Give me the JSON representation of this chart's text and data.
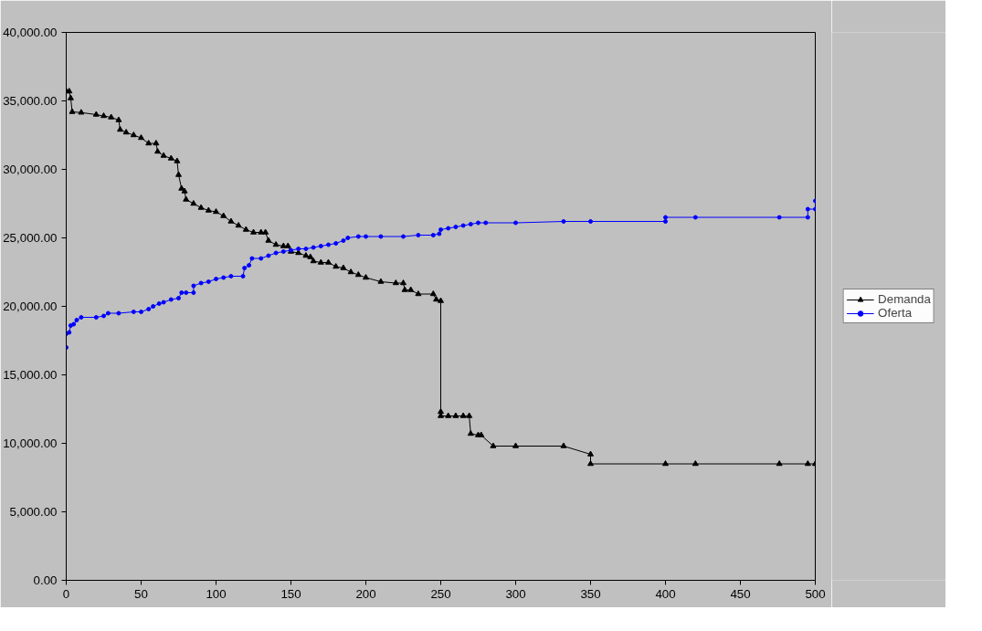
{
  "chart_data": {
    "type": "line",
    "xlim": [
      0,
      500
    ],
    "ylim": [
      0,
      40000
    ],
    "xticks": [
      0,
      50,
      100,
      150,
      200,
      250,
      300,
      350,
      400,
      450,
      500
    ],
    "yticks": [
      {
        "value": 0,
        "label": "0.00"
      },
      {
        "value": 5000,
        "label": "5,000.00"
      },
      {
        "value": 10000,
        "label": "10,000.00"
      },
      {
        "value": 15000,
        "label": "15,000.00"
      },
      {
        "value": 20000,
        "label": "20,000.00"
      },
      {
        "value": 25000,
        "label": "25,000.00"
      },
      {
        "value": 30000,
        "label": "30,000.00"
      },
      {
        "value": 35000,
        "label": "35,000.00"
      },
      {
        "value": 40000,
        "label": "40,000.00"
      }
    ],
    "grid": false,
    "legend": "right",
    "line_style": "solid",
    "series": [
      {
        "name": "Demanda",
        "color": "#000000",
        "marker": "triangle",
        "x": [
          0,
          2,
          3,
          4,
          10,
          20,
          25,
          30,
          35,
          36,
          40,
          45,
          50,
          55,
          60,
          61,
          65,
          70,
          74,
          75,
          77,
          79,
          80,
          85,
          90,
          95,
          100,
          105,
          110,
          115,
          120,
          125,
          130,
          133,
          135,
          140,
          145,
          148,
          150,
          155,
          160,
          163,
          165,
          170,
          175,
          180,
          185,
          190,
          195,
          200,
          210,
          220,
          225,
          226,
          230,
          235,
          245,
          247,
          250,
          250,
          250,
          255,
          260,
          265,
          269,
          270,
          275,
          277,
          285,
          300,
          332,
          350,
          350,
          400,
          420,
          476,
          495,
          500
        ],
        "values": [
          35700,
          35700,
          35200,
          34200,
          34150,
          34000,
          33900,
          33800,
          33600,
          32900,
          32700,
          32500,
          32300,
          31900,
          31900,
          31300,
          31000,
          30800,
          30600,
          29600,
          28600,
          28400,
          27800,
          27500,
          27200,
          27000,
          26900,
          26600,
          26200,
          25900,
          25600,
          25400,
          25400,
          25400,
          24800,
          24500,
          24400,
          24400,
          24000,
          23900,
          23700,
          23600,
          23300,
          23200,
          23200,
          22900,
          22800,
          22500,
          22300,
          22100,
          21800,
          21700,
          21700,
          21200,
          21200,
          20900,
          20900,
          20500,
          20400,
          12300,
          12000,
          12000,
          12000,
          12000,
          12000,
          10700,
          10600,
          10600,
          9800,
          9800,
          9800,
          9200,
          8500,
          8500,
          8500,
          8500,
          8500,
          8500
        ]
      },
      {
        "name": "Oferta",
        "color": "#0000ff",
        "marker": "circle",
        "x": [
          0,
          0,
          2,
          3,
          5,
          7,
          10,
          20,
          25,
          28,
          35,
          45,
          50,
          55,
          58,
          62,
          65,
          70,
          75,
          77,
          80,
          85,
          85,
          90,
          95,
          100,
          105,
          110,
          118,
          119,
          122,
          124,
          130,
          135,
          140,
          145,
          150,
          155,
          160,
          165,
          170,
          175,
          180,
          185,
          188,
          195,
          200,
          210,
          225,
          235,
          245,
          249,
          250,
          255,
          260,
          265,
          270,
          275,
          280,
          300,
          332,
          350,
          400,
          400,
          420,
          476,
          495,
          495,
          500,
          500
        ],
        "values": [
          17000,
          18000,
          18100,
          18600,
          18700,
          19000,
          19200,
          19200,
          19300,
          19500,
          19500,
          19600,
          19600,
          19800,
          20000,
          20200,
          20300,
          20500,
          20600,
          21000,
          21000,
          21000,
          21500,
          21700,
          21800,
          22000,
          22100,
          22200,
          22200,
          22800,
          23000,
          23500,
          23500,
          23700,
          23900,
          24000,
          24100,
          24200,
          24200,
          24300,
          24400,
          24500,
          24600,
          24800,
          25000,
          25100,
          25100,
          25100,
          25100,
          25200,
          25200,
          25300,
          25600,
          25700,
          25800,
          25900,
          26000,
          26100,
          26100,
          26100,
          26200,
          26200,
          26200,
          26500,
          26500,
          26500,
          26500,
          27100,
          27100,
          27700
        ]
      }
    ]
  }
}
